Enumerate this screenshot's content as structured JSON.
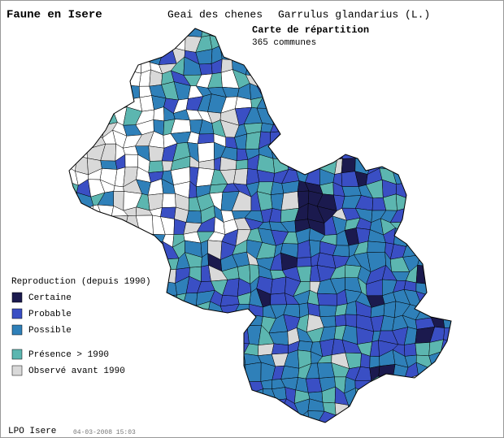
{
  "header": {
    "title": "Faune en Isere",
    "species_fr": "Geai des chenes",
    "species_latin": "Garrulus glandarius (L.)",
    "map_title": "Carte de répartition",
    "communes": "365 communes"
  },
  "legend": {
    "title": "Reproduction (depuis 1990)",
    "items": [
      {
        "label": "Certaine",
        "color": "#1b1a4e"
      },
      {
        "label": "Probable",
        "color": "#3a4fc4"
      },
      {
        "label": "Possible",
        "color": "#2f80b9"
      },
      {
        "label": "Présence > 1990",
        "color": "#5cb6b0"
      },
      {
        "label": "Observé avant 1990",
        "color": "#d9d9d9"
      }
    ]
  },
  "footer": {
    "source": "LPO Isere",
    "date": "04-03-2008 15:03"
  }
}
